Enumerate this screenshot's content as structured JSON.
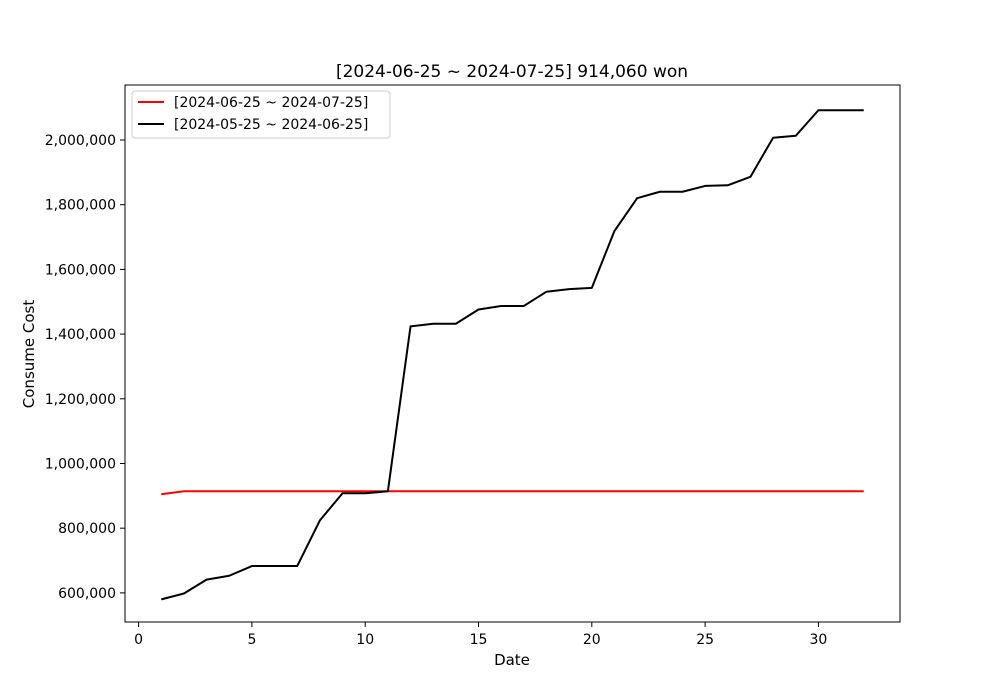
{
  "chart_data": {
    "type": "line",
    "title": "[2024-06-25 ~ 2024-07-25] 914,060 won",
    "xlabel": "Date",
    "ylabel": "Consume Cost",
    "xlim": [
      -0.6,
      33.6
    ],
    "ylim": [
      510000,
      2170000
    ],
    "xticks": [
      0,
      5,
      10,
      15,
      20,
      25,
      30
    ],
    "xtick_labels": [
      "0",
      "5",
      "10",
      "15",
      "20",
      "25",
      "30"
    ],
    "yticks": [
      600000,
      800000,
      1000000,
      1200000,
      1400000,
      1600000,
      1800000,
      2000000
    ],
    "ytick_labels": [
      "600,000",
      "800,000",
      "1,000,000",
      "1,200,000",
      "1,400,000",
      "1,600,000",
      "1,800,000",
      "2,000,000"
    ],
    "grid": false,
    "legend_position": "top-left",
    "series": [
      {
        "name": "[2024-06-25 ~ 2024-07-25]",
        "color": "#ff0000",
        "x": [
          1,
          2,
          3,
          4,
          5,
          6,
          7,
          8,
          9,
          10,
          11,
          12,
          13,
          14,
          15,
          16,
          17,
          18,
          19,
          20,
          21,
          22,
          23,
          24,
          25,
          26,
          27,
          28,
          29,
          30,
          31,
          32
        ],
        "y": [
          905000,
          914060,
          914060,
          914060,
          914060,
          914060,
          914060,
          914060,
          914060,
          914060,
          914060,
          914060,
          914060,
          914060,
          914060,
          914060,
          914060,
          914060,
          914060,
          914060,
          914060,
          914060,
          914060,
          914060,
          914060,
          914060,
          914060,
          914060,
          914060,
          914060,
          914060,
          914060
        ]
      },
      {
        "name": "[2024-05-25 ~ 2024-06-25]",
        "color": "#000000",
        "x": [
          1,
          2,
          3,
          4,
          5,
          6,
          7,
          8,
          9,
          10,
          11,
          12,
          13,
          14,
          15,
          16,
          17,
          18,
          19,
          20,
          21,
          22,
          23,
          24,
          25,
          26,
          27,
          28,
          29,
          30,
          31,
          32
        ],
        "y": [
          580000,
          598000,
          641000,
          653000,
          683000,
          683000,
          683000,
          824000,
          908000,
          908000,
          914000,
          1424000,
          1432000,
          1432000,
          1476000,
          1487000,
          1487000,
          1531000,
          1539000,
          1543000,
          1719000,
          1820000,
          1840000,
          1840000,
          1858000,
          1860000,
          1886000,
          2007000,
          2013000,
          2092000,
          2092000,
          2092000
        ]
      }
    ]
  }
}
